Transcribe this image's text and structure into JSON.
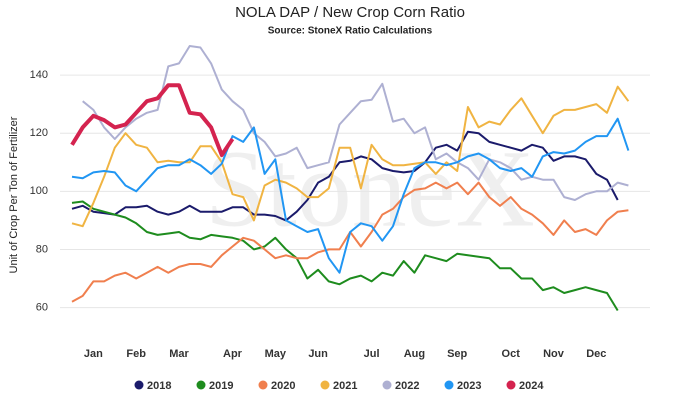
{
  "chart_data": {
    "type": "line",
    "title": "NOLA DAP / New Crop Corn Ratio",
    "subtitle": "Source: StoneX Ratio Calculations",
    "watermark": "StoneX",
    "y_label": "Unit of Crop Per Ton of Fertilizer",
    "categories": [
      null,
      null,
      "Jan",
      null,
      null,
      null,
      "Feb",
      null,
      null,
      null,
      "Mar",
      null,
      null,
      null,
      null,
      "Apr",
      null,
      null,
      null,
      "May",
      null,
      null,
      null,
      "Jun",
      null,
      null,
      null,
      null,
      "Jul",
      null,
      null,
      null,
      "Aug",
      null,
      null,
      null,
      "Sep",
      null,
      null,
      null,
      null,
      "Oct",
      null,
      null,
      null,
      "Nov",
      null,
      null,
      null,
      "Dec",
      null,
      null,
      null
    ],
    "ylim": [
      54,
      150
    ],
    "yticks": [
      60,
      80,
      100,
      120,
      140
    ],
    "grid": true,
    "series": [
      {
        "name": "2018",
        "color": "#1b1b6b",
        "values": [
          94,
          95,
          93,
          92.5,
          92,
          94.5,
          94.5,
          95,
          93,
          92,
          93,
          95,
          93,
          93,
          93,
          94.5,
          94.5,
          92,
          92,
          91.5,
          90,
          93,
          97,
          103,
          105,
          110,
          110.5,
          112,
          111,
          108,
          107,
          106.5,
          107,
          110,
          115,
          116,
          114,
          120.5,
          120,
          117,
          116,
          115,
          114,
          116,
          115,
          110.5,
          112,
          112,
          111,
          106,
          104,
          97,
          null
        ]
      },
      {
        "name": "2019",
        "color": "#1e8c1e",
        "values": [
          96,
          96.5,
          94,
          93,
          92,
          91,
          89,
          86,
          85,
          85.5,
          86,
          84,
          83.5,
          85,
          84.5,
          84,
          83,
          80,
          81,
          84,
          80,
          77,
          70,
          73,
          69,
          68,
          70,
          71,
          69,
          72,
          71,
          76,
          72,
          78,
          77,
          76,
          78.5,
          78,
          77.5,
          77,
          73.5,
          73.5,
          70,
          70,
          66,
          67,
          65,
          66,
          67,
          66,
          65,
          59,
          null
        ]
      },
      {
        "name": "2020",
        "color": "#f07f4e",
        "values": [
          62,
          64,
          69,
          69,
          71,
          72,
          70,
          72,
          74,
          72,
          74,
          75,
          75,
          74,
          78,
          81,
          84,
          83,
          80,
          77,
          78,
          77,
          77,
          79,
          80,
          80,
          86,
          81,
          86,
          92,
          94,
          98,
          100.5,
          101,
          103,
          101,
          103,
          99,
          103,
          98,
          95,
          98,
          94,
          92,
          89,
          85,
          90,
          86,
          87,
          85,
          90,
          93,
          93.5
        ]
      },
      {
        "name": "2021",
        "color": "#f0b442",
        "values": [
          89,
          88,
          96,
          105,
          115,
          120,
          116,
          115,
          110,
          110.5,
          110,
          110,
          115.5,
          115.5,
          110,
          99,
          98,
          90,
          102,
          104,
          103,
          101,
          98,
          98,
          101,
          115,
          115,
          101,
          116,
          111,
          109,
          109,
          109.5,
          110,
          106,
          110,
          107,
          129,
          122,
          124,
          123,
          128,
          132,
          126,
          120,
          126,
          128,
          128,
          129,
          130,
          127,
          136,
          131
        ]
      },
      {
        "name": "2022",
        "color": "#aeb0d2",
        "values": [
          null,
          131,
          128,
          122,
          118,
          122,
          125,
          127,
          128,
          143,
          144,
          150,
          149.5,
          144,
          135,
          131,
          128,
          120,
          117,
          112,
          113,
          115,
          108,
          109,
          110,
          123,
          127,
          131,
          131.5,
          137,
          124,
          125,
          120,
          122,
          111,
          113,
          110,
          108,
          104,
          111,
          110,
          108,
          104,
          105,
          104,
          104,
          98,
          97,
          99,
          100,
          100,
          103,
          102
        ]
      },
      {
        "name": "2023",
        "color": "#2196f3",
        "values": [
          105,
          104.5,
          106.5,
          107,
          106.5,
          102,
          100,
          104,
          108,
          109,
          109,
          111,
          109,
          106,
          109.5,
          119,
          117,
          122,
          106,
          111,
          90,
          88,
          86,
          87,
          77,
          72,
          86,
          89,
          88,
          83,
          88,
          99,
          108,
          110,
          110,
          109,
          110,
          112,
          113,
          111,
          108,
          107,
          108,
          105,
          112,
          113.5,
          113,
          114,
          117,
          119,
          119,
          125,
          114
        ]
      },
      {
        "name": "2024",
        "color": "#d4234f",
        "values": [
          116,
          122,
          126,
          124.5,
          122,
          123,
          127,
          131,
          132,
          136.5,
          136.5,
          127,
          126.5,
          122,
          112.5,
          118,
          null,
          null,
          null,
          null,
          null,
          null,
          null,
          null,
          null,
          null,
          null,
          null,
          null,
          null,
          null,
          null,
          null,
          null,
          null,
          null,
          null,
          null,
          null,
          null,
          null,
          null,
          null,
          null,
          null,
          null,
          null,
          null,
          null,
          null,
          null,
          null,
          null
        ]
      }
    ]
  }
}
